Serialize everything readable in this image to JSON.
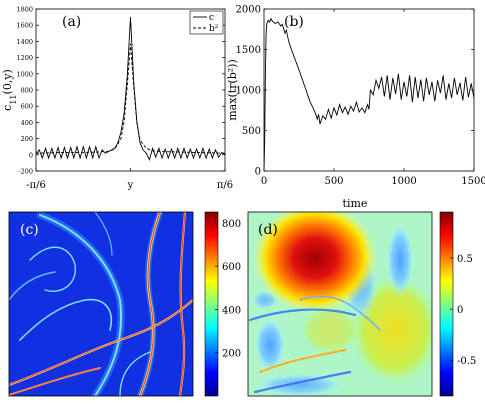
{
  "chart_data": [
    {
      "panel": "(a)",
      "type": "line",
      "xlabel": "y",
      "ylabel": "c11(0,y)",
      "ylabel_main": "c",
      "ylabel_sub": "11",
      "ylabel_args": "(0,y)",
      "xlim": [
        -0.5236,
        0.5236
      ],
      "ylim": [
        -200,
        1800
      ],
      "x_ticks": [
        {
          "value": -0.5236,
          "label": "-π/6"
        },
        {
          "value": 0,
          "label": "y"
        },
        {
          "value": 0.5236,
          "label": "π/6"
        }
      ],
      "y_ticks": [
        -200,
        0,
        200,
        400,
        600,
        800,
        1000,
        1200,
        1400,
        1600,
        1800
      ],
      "legend_position": "top-right",
      "legend": [
        {
          "label": "c",
          "style": "solid"
        },
        {
          "label": "b²",
          "style": "dashed"
        }
      ],
      "series": [
        {
          "name": "c",
          "style": "solid",
          "x": [
            -0.5236,
            -0.5061,
            -0.4887,
            -0.4712,
            -0.4538,
            -0.4363,
            -0.4189,
            -0.4014,
            -0.384,
            -0.3665,
            -0.3491,
            -0.3316,
            -0.3142,
            -0.2967,
            -0.2793,
            -0.2618,
            -0.2443,
            -0.2269,
            -0.2094,
            -0.192,
            -0.1745,
            -0.1571,
            -0.1396,
            -0.1222,
            -0.1047,
            -0.0873,
            -0.0698,
            -0.0524,
            -0.0349,
            -0.0175,
            0.0,
            0.0175,
            0.0349,
            0.0524,
            0.0698,
            0.0873,
            0.1047,
            0.1222,
            0.1396,
            0.1571,
            0.1745,
            0.192,
            0.2094,
            0.2269,
            0.2443,
            0.2618,
            0.2793,
            0.2967,
            0.3142,
            0.3316,
            0.3491,
            0.3665,
            0.384,
            0.4014,
            0.4189,
            0.4363,
            0.4538,
            0.4712,
            0.4887,
            0.5061,
            0.5236
          ],
          "y": [
            10,
            60,
            -40,
            80,
            -40,
            80,
            -40,
            90,
            -40,
            90,
            -40,
            90,
            -40,
            100,
            -40,
            100,
            -40,
            100,
            -40,
            100,
            -40,
            60,
            20,
            40,
            60,
            80,
            150,
            280,
            520,
            980,
            1700,
            900,
            420,
            150,
            60,
            20,
            -60,
            80,
            -30,
            80,
            -40,
            70,
            -40,
            70,
            -40,
            80,
            -40,
            80,
            -40,
            70,
            -40,
            70,
            -40,
            80,
            -40,
            70,
            -40,
            60,
            -30,
            30,
            0
          ]
        },
        {
          "name": "b²",
          "style": "dashed",
          "x": [
            -0.5236,
            -0.4363,
            -0.349,
            -0.2618,
            -0.1745,
            -0.1222,
            -0.0873,
            -0.0524,
            -0.0349,
            -0.0175,
            0.0,
            0.0175,
            0.0349,
            0.0524,
            0.0873,
            0.1222,
            0.1745,
            0.2618,
            0.349,
            0.4363,
            0.5236
          ],
          "y": [
            20,
            25,
            30,
            30,
            35,
            45,
            70,
            200,
            420,
            860,
            1370,
            850,
            400,
            180,
            80,
            50,
            40,
            35,
            30,
            25,
            20
          ]
        }
      ]
    },
    {
      "panel": "(b)",
      "type": "line",
      "xlabel": "time",
      "ylabel": "max(tr(b²))",
      "xlim": [
        0,
        1500
      ],
      "ylim": [
        0,
        2000
      ],
      "x_ticks": [
        0,
        500,
        1000,
        1500
      ],
      "y_ticks": [
        0,
        500,
        1000,
        1500,
        2000
      ],
      "series": [
        {
          "x": [
            0,
            5,
            10,
            15,
            20,
            30,
            40,
            50,
            60,
            80,
            100,
            120,
            130,
            140,
            150,
            160,
            170,
            180,
            200,
            250,
            300,
            330,
            350,
            370,
            380,
            390,
            400,
            420,
            440,
            460,
            480,
            500,
            520,
            540,
            560,
            580,
            600,
            620,
            640,
            660,
            680,
            700,
            720,
            740,
            750,
            760,
            780,
            800,
            820,
            840,
            860,
            880,
            900,
            920,
            940,
            960,
            980,
            1000,
            1020,
            1040,
            1060,
            1080,
            1100,
            1120,
            1140,
            1160,
            1180,
            1200,
            1220,
            1240,
            1260,
            1280,
            1300,
            1320,
            1340,
            1360,
            1380,
            1400,
            1420,
            1440,
            1460,
            1480,
            1500
          ],
          "y": [
            0,
            400,
            1200,
            1700,
            1820,
            1860,
            1840,
            1880,
            1850,
            1820,
            1840,
            1790,
            1810,
            1760,
            1700,
            1740,
            1650,
            1580,
            1480,
            1250,
            1000,
            850,
            780,
            700,
            640,
            700,
            580,
            680,
            640,
            760,
            650,
            780,
            690,
            820,
            720,
            790,
            700,
            800,
            740,
            850,
            730,
            780,
            720,
            820,
            760,
            1000,
            940,
            1120,
            1020,
            1160,
            920,
            1180,
            880,
            1150,
            950,
            1200,
            880,
            1100,
            920,
            1180,
            850,
            1160,
            900,
            1130,
            860,
            1150,
            940,
            1100,
            860,
            1120,
            960,
            1180,
            880,
            1080,
            900,
            1150,
            940,
            1090,
            870,
            1160,
            910,
            1080,
            900
          ]
        }
      ]
    },
    {
      "panel": "(c)",
      "type": "heatmap",
      "colorbar_ticks": [
        200,
        400,
        600,
        800
      ],
      "colorbar_range": [
        0,
        850
      ],
      "colormap": "jet"
    },
    {
      "panel": "(d)",
      "type": "heatmap",
      "colorbar_ticks": [
        -0.5,
        0,
        0.5
      ],
      "colorbar_range": [
        -0.85,
        0.95
      ],
      "colormap": "jet"
    }
  ]
}
